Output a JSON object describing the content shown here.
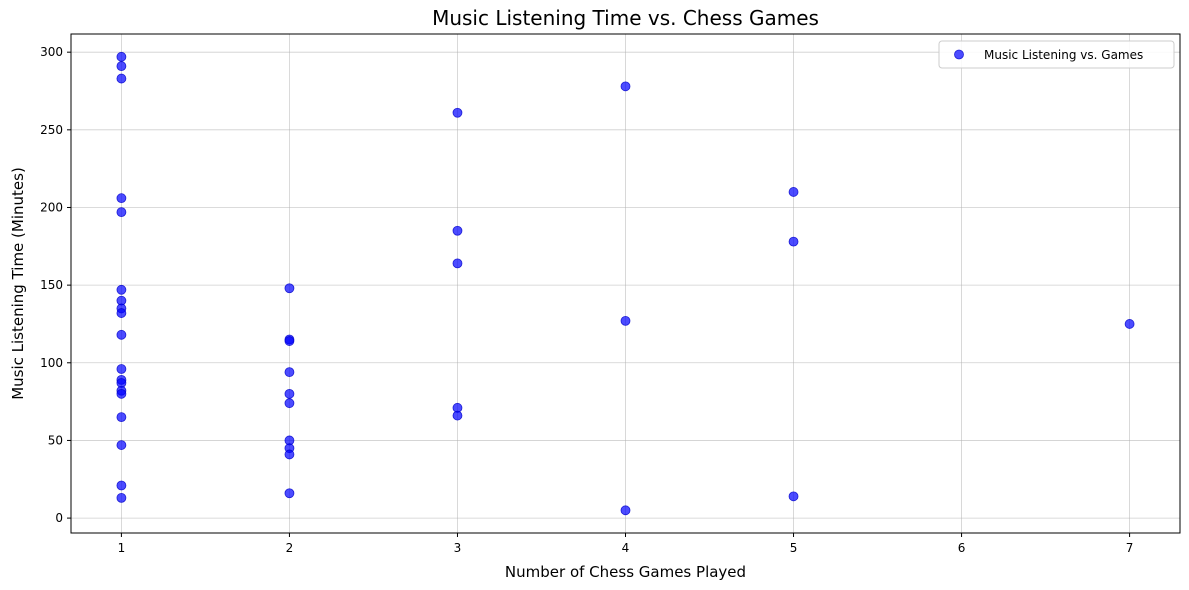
{
  "chart_data": {
    "type": "scatter",
    "title": "Music Listening Time vs. Chess Games",
    "xlabel": "Number of Chess Games Played",
    "ylabel": "Music Listening Time (Minutes)",
    "xlim": [
      0.7,
      7.3
    ],
    "ylim": [
      -9.6,
      311.7
    ],
    "xticks": [
      "1",
      "2",
      "3",
      "4",
      "5",
      "6",
      "7"
    ],
    "yticks": [
      "0",
      "50",
      "100",
      "150",
      "200",
      "250",
      "300"
    ],
    "grid": true,
    "legend": {
      "position": "top-right",
      "label": "Music Listening vs. Games"
    },
    "marker_color": "#0000ff",
    "series": [
      {
        "name": "Music Listening vs. Games",
        "points": [
          {
            "x": 1,
            "y": 297
          },
          {
            "x": 1,
            "y": 291
          },
          {
            "x": 1,
            "y": 283
          },
          {
            "x": 1,
            "y": 206
          },
          {
            "x": 1,
            "y": 197
          },
          {
            "x": 1,
            "y": 147
          },
          {
            "x": 1,
            "y": 140
          },
          {
            "x": 1,
            "y": 135
          },
          {
            "x": 1,
            "y": 132
          },
          {
            "x": 1,
            "y": 118
          },
          {
            "x": 1,
            "y": 96
          },
          {
            "x": 1,
            "y": 89
          },
          {
            "x": 1,
            "y": 87
          },
          {
            "x": 1,
            "y": 82
          },
          {
            "x": 1,
            "y": 80
          },
          {
            "x": 1,
            "y": 65
          },
          {
            "x": 1,
            "y": 47
          },
          {
            "x": 1,
            "y": 21
          },
          {
            "x": 1,
            "y": 13
          },
          {
            "x": 2,
            "y": 148
          },
          {
            "x": 2,
            "y": 115
          },
          {
            "x": 2,
            "y": 114
          },
          {
            "x": 2,
            "y": 94
          },
          {
            "x": 2,
            "y": 80
          },
          {
            "x": 2,
            "y": 74
          },
          {
            "x": 2,
            "y": 50
          },
          {
            "x": 2,
            "y": 45
          },
          {
            "x": 2,
            "y": 41
          },
          {
            "x": 2,
            "y": 16
          },
          {
            "x": 3,
            "y": 261
          },
          {
            "x": 3,
            "y": 185
          },
          {
            "x": 3,
            "y": 164
          },
          {
            "x": 3,
            "y": 71
          },
          {
            "x": 3,
            "y": 66
          },
          {
            "x": 4,
            "y": 278
          },
          {
            "x": 4,
            "y": 127
          },
          {
            "x": 4,
            "y": 5
          },
          {
            "x": 5,
            "y": 210
          },
          {
            "x": 5,
            "y": 178
          },
          {
            "x": 5,
            "y": 14
          },
          {
            "x": 7,
            "y": 125
          }
        ]
      }
    ]
  }
}
